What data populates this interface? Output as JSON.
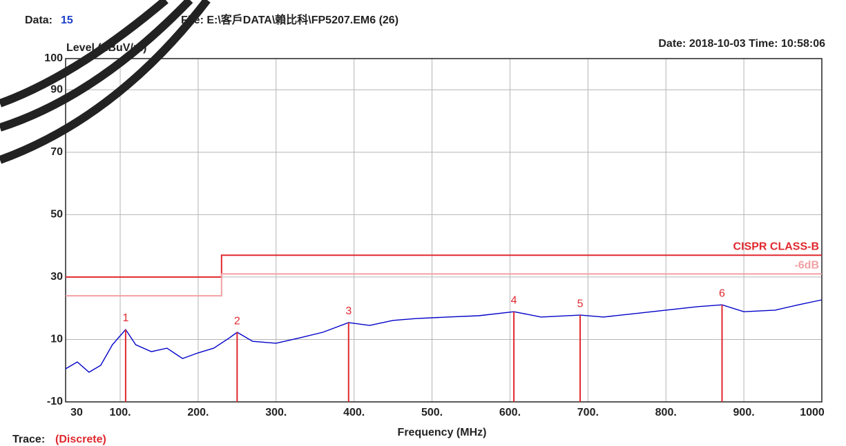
{
  "chart_data": {
    "type": "line",
    "data_label": "Data:",
    "data_number": "15",
    "file": "File: E:\\客戶DATA\\賴比科\\FP5207.EM6  (26)",
    "datetime": "Date: 2018-10-03  Time: 10:58:06",
    "y_label": "Level (dBuV/m)",
    "x_label": "Frequency (MHz)",
    "trace_label": "Trace:",
    "trace_mode": "(Discrete)",
    "xlim": [
      30,
      1000
    ],
    "ylim": [
      -10,
      100
    ],
    "xticks": [
      30,
      {
        "value": 100,
        "label": "100."
      },
      {
        "value": 200,
        "label": "200."
      },
      {
        "value": 300,
        "label": "300."
      },
      {
        "value": 400,
        "label": "400."
      },
      {
        "value": 500,
        "label": "500."
      },
      {
        "value": 600,
        "label": "600."
      },
      {
        "value": 700,
        "label": "700."
      },
      {
        "value": 800,
        "label": "800."
      },
      {
        "value": 900,
        "label": "900."
      },
      1000
    ],
    "yticks": [
      -10,
      10,
      30,
      50,
      70,
      90,
      100
    ],
    "grid": true,
    "series": [
      {
        "color": "#0000c8",
        "x": [
          30,
          45,
          60,
          75,
          90,
          107,
          120,
          140,
          160,
          180,
          200,
          220,
          240,
          250,
          270,
          300,
          330,
          360,
          393,
          420,
          450,
          480,
          520,
          560,
          605,
          640,
          690,
          720,
          760,
          800,
          840,
          872,
          900,
          940,
          970,
          1000
        ],
        "values": [
          0.6,
          2.8,
          -0.5,
          1.7,
          8.3,
          13.2,
          8.3,
          6.1,
          7.2,
          3.9,
          5.7,
          7.2,
          10.5,
          12.3,
          9.4,
          8.8,
          10.5,
          12.3,
          15.4,
          14.5,
          16.1,
          16.7,
          17.2,
          17.6,
          18.9,
          17.2,
          17.8,
          17.2,
          18.3,
          19.4,
          20.5,
          21.1,
          18.9,
          19.4,
          21.1,
          22.7
        ]
      },
      {
        "name": "CISPR CLASS-B",
        "color": "#e0282e",
        "x": [
          30,
          230,
          230,
          1000
        ],
        "values": [
          30,
          30,
          37,
          37
        ]
      },
      {
        "name": "-6dB",
        "color": "#f2a0a4",
        "x": [
          30,
          230,
          230,
          1000
        ],
        "values": [
          24,
          24,
          31,
          31
        ]
      }
    ],
    "markers": [
      {
        "label": "1",
        "x": 107,
        "value": 13.2
      },
      {
        "label": "2",
        "x": 250,
        "value": 12.3
      },
      {
        "label": "3",
        "x": 393,
        "value": 15.4
      },
      {
        "label": "4",
        "x": 605,
        "value": 18.9
      },
      {
        "label": "5",
        "x": 690,
        "value": 17.8
      },
      {
        "label": "6",
        "x": 872,
        "value": 21.1
      }
    ],
    "marker_color": "#e0282e"
  }
}
